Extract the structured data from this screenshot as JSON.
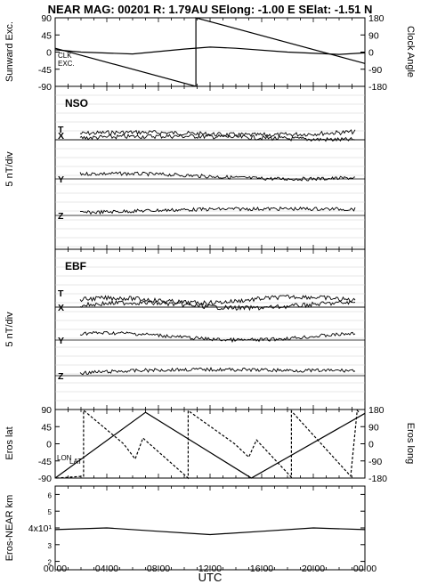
{
  "title": "NEAR MAG: 00201  R: 1.79AU  SElong:   -1.00 E  SElat:   -1.51 N",
  "x_label": "UTC",
  "x_ticks": [
    "00:00",
    "04:00",
    "08:00",
    "12:00",
    "16:00",
    "20:00",
    "00:00"
  ],
  "chart_data": [
    {
      "type": "line",
      "panel": "angles",
      "ylabel_left": "Sunward Exc.",
      "ylabel_right": "Clock Angle",
      "ylim_left": [
        -90,
        90
      ],
      "ylim_right": [
        -180,
        180
      ],
      "yticks_left": [
        "90",
        "45",
        "0",
        "-45",
        "-90"
      ],
      "yticks_right": [
        "180",
        "90",
        "0",
        "-90",
        "-180"
      ],
      "annotations": [
        "CLK",
        "EXC."
      ],
      "series": [
        {
          "name": "CLK",
          "style": "solid",
          "x": [
            0,
            10.9,
            10.9,
            24
          ],
          "y": [
            20,
            -180,
            180,
            -60
          ]
        },
        {
          "name": "EXC.",
          "style": "solid",
          "x": [
            0,
            2,
            6,
            10,
            12,
            14,
            18,
            22,
            24
          ],
          "y": [
            6,
            0,
            -5,
            8,
            13,
            10,
            0,
            -6,
            -2
          ]
        }
      ]
    },
    {
      "type": "line",
      "panel": "NSO",
      "label": "NSO",
      "ylabel": "5 nT/div",
      "components": [
        "T",
        "X",
        "Y",
        "Z"
      ]
    },
    {
      "type": "line",
      "panel": "EBF",
      "label": "EBF",
      "ylabel": "5 nT/div",
      "components": [
        "T",
        "X",
        "Y",
        "Z"
      ]
    },
    {
      "type": "line",
      "panel": "eros_angles",
      "ylabel_left": "Eros lat",
      "ylabel_right": "Eros long",
      "ylim_left": [
        -90,
        90
      ],
      "ylim_right": [
        -180,
        180
      ],
      "yticks_left": [
        "90",
        "45",
        "0",
        "-45",
        "-90"
      ],
      "yticks_right": [
        "180",
        "90",
        "0",
        "-90",
        "-180"
      ],
      "annotations": [
        "LON",
        "LAT"
      ],
      "series": [
        {
          "name": "LON",
          "style": "solid",
          "x": [
            0,
            7,
            15.2,
            24
          ],
          "y": [
            -270,
            165,
            -180,
            160
          ]
        },
        {
          "name": "LAT",
          "style": "dashed",
          "x": [
            0.1,
            2.2,
            2.2,
            5.3,
            6.2,
            6.8,
            10.3,
            10.3,
            13.9,
            15,
            15.6,
            18.3,
            18.3,
            22.9,
            23.4,
            23.6
          ],
          "y": [
            -90,
            -85,
            88,
            0,
            -40,
            15,
            -90,
            87,
            0,
            -35,
            10,
            -88,
            86,
            -85,
            88,
            80
          ]
        }
      ]
    },
    {
      "type": "line",
      "panel": "distance",
      "ylabel": "Eros-NEAR km",
      "yticks": [
        "6",
        "5",
        "4x10¹",
        "3",
        "2"
      ],
      "series": [
        {
          "name": "",
          "x": [
            0,
            4,
            8,
            12,
            16,
            20,
            24
          ],
          "y": [
            39,
            40,
            38,
            36,
            38,
            40,
            39
          ]
        }
      ]
    }
  ]
}
